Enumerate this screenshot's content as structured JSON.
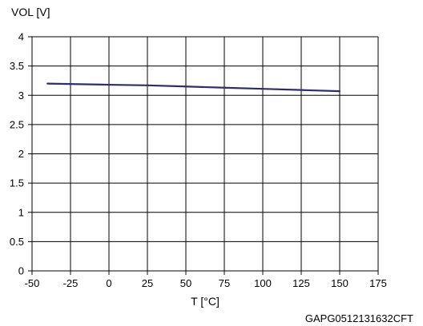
{
  "chart_data": {
    "type": "line",
    "title": "",
    "xlabel": "T [°C]",
    "ylabel": "VOL [V]",
    "xlim": [
      -50,
      175
    ],
    "ylim": [
      0,
      4
    ],
    "x_ticks": [
      -50,
      -25,
      0,
      25,
      50,
      75,
      100,
      125,
      150,
      175
    ],
    "x_tick_labels": [
      "-50",
      "-25",
      "0",
      "25",
      "50",
      "75",
      "100",
      "125",
      "150",
      "175"
    ],
    "y_ticks": [
      0,
      0.5,
      1,
      1.5,
      2,
      2.5,
      3,
      3.5,
      4
    ],
    "y_tick_labels": [
      "0",
      "0.5",
      "1",
      "1.5",
      "2",
      "2.5",
      "3",
      "3.5",
      "4"
    ],
    "grid": true,
    "series": [
      {
        "x": [
          -40,
          0,
          25,
          50,
          75,
          100,
          125,
          150
        ],
        "y": [
          3.2,
          3.18,
          3.17,
          3.15,
          3.13,
          3.11,
          3.09,
          3.07
        ],
        "color": "#2b2f66"
      }
    ],
    "figure_code": "GAPG0512131632CFT"
  }
}
